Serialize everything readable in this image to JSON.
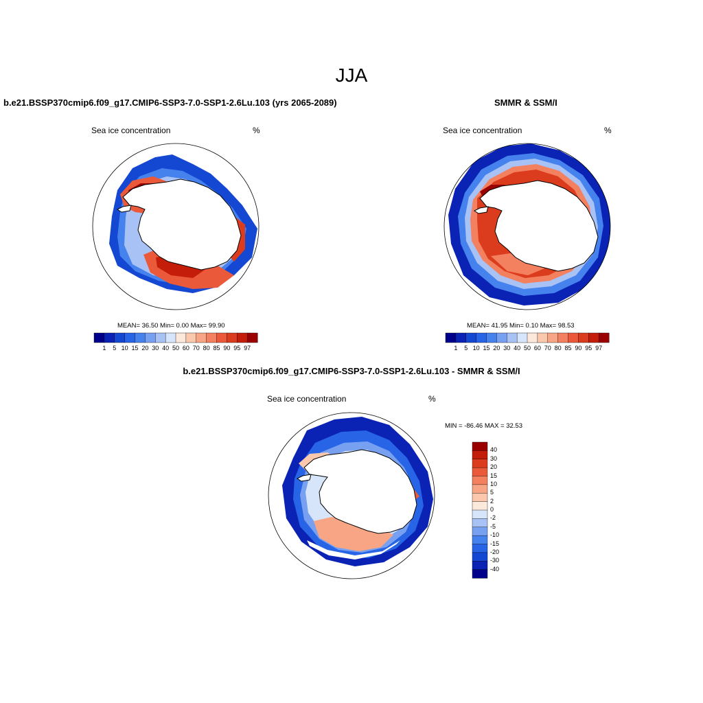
{
  "page": {
    "title": "JJA"
  },
  "colors": {
    "concentration_palette": [
      "#00008b",
      "#0a23b4",
      "#1448d2",
      "#2864e6",
      "#4682ee",
      "#78a0f0",
      "#a8c2f5",
      "#d7e5fa",
      "#fde8dc",
      "#fbc8ae",
      "#f8a585",
      "#f3805f",
      "#ea5a3a",
      "#dc3c1e",
      "#c41e0a",
      "#9b0000"
    ],
    "difference_palette": [
      "#00008b",
      "#0a23b4",
      "#1448d2",
      "#2864e6",
      "#4682ee",
      "#78a0f0",
      "#a8c2f5",
      "#d7e5fa",
      "#fde8dc",
      "#fbc8ae",
      "#f8a585",
      "#f3805f",
      "#ea5a3a",
      "#dc3c1e",
      "#c41e0a",
      "#9b0000"
    ],
    "map_outline": "#000000"
  },
  "panels": {
    "model": {
      "title": "b.e21.BSSP370cmip6.f09_g17.CMIP6-SSP3-7.0-SSP1-2.6Lu.103 (yrs 2065-2089)",
      "variable": "Sea ice concentration",
      "units": "%",
      "stats": "MEAN=  36.50  Min=   0.00  Max=  99.90",
      "colorbar_labels": [
        "1",
        "5",
        "10",
        "15",
        "20",
        "30",
        "40",
        "50",
        "60",
        "70",
        "80",
        "85",
        "90",
        "95",
        "97"
      ]
    },
    "obs": {
      "title": "SMMR & SSM/I",
      "variable": "Sea ice concentration",
      "units": "%",
      "stats": "MEAN=  41.95  Min=   0.10  Max=  98.53",
      "colorbar_labels": [
        "1",
        "5",
        "10",
        "15",
        "20",
        "30",
        "40",
        "50",
        "60",
        "70",
        "80",
        "85",
        "90",
        "95",
        "97"
      ]
    },
    "diff": {
      "title": "b.e21.BSSP370cmip6.f09_g17.CMIP6-SSP3-7.0-SSP1-2.6Lu.103 - SMMR & SSM/I",
      "variable": "Sea ice concentration",
      "units": "%",
      "stats": "MIN = -86.46 MAX =  32.53",
      "colorbar_labels": [
        "40",
        "30",
        "20",
        "15",
        "10",
        "5",
        "2",
        "0",
        "-2",
        "-5",
        "-10",
        "-15",
        "-20",
        "-30",
        "-40"
      ]
    }
  }
}
